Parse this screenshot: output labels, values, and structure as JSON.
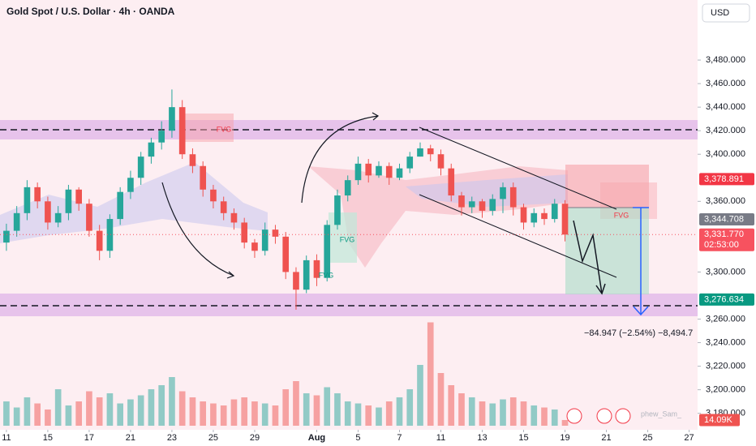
{
  "chart_data": {
    "type": "candlestick",
    "title": "Gold Spot / U.S. Dollar · 4h · OANDA",
    "currency": "USD",
    "watermark": "phew_Sam_",
    "measure_text": "−84.947 (−2.54%) −8,494.7",
    "annotations": [
      "FVG",
      "FVG",
      "FVG",
      "FVG"
    ],
    "up_color": "#26a69a",
    "down_color": "#ef5350",
    "x": [
      0,
      0.5,
      1,
      1.5,
      2,
      2.5,
      3,
      3.5,
      4,
      4.5,
      5,
      5.5,
      6,
      6.5,
      7,
      7.5,
      8,
      8.5,
      9,
      9.5,
      10,
      10.5,
      11,
      11.5,
      12,
      12.5,
      13,
      13.5,
      14,
      14.5,
      15,
      15.5,
      16,
      16.5,
      17,
      17.5,
      18,
      18.5,
      19,
      19.5,
      20,
      20.5,
      21,
      21.5,
      22,
      22.5,
      23,
      23.5,
      24,
      24.5,
      25,
      25.5,
      26,
      26.5,
      27
    ],
    "open": [
      3325,
      3335,
      3350,
      3372,
      3360,
      3342,
      3350,
      3370,
      3358,
      3335,
      3318,
      3345,
      3368,
      3380,
      3398,
      3410,
      3420,
      3440,
      3400,
      3390,
      3370,
      3360,
      3350,
      3342,
      3325,
      3318,
      3336,
      3330,
      3300,
      3285,
      3310,
      3295,
      3340,
      3365,
      3378,
      3392,
      3382,
      3390,
      3380,
      3388,
      3398,
      3405,
      3400,
      3388,
      3365,
      3355,
      3360,
      3352,
      3362,
      3372,
      3355,
      3342,
      3350,
      3345,
      3358
    ],
    "high": [
      3341,
      3356,
      3378,
      3376,
      3364,
      3356,
      3374,
      3372,
      3362,
      3340,
      3349,
      3372,
      3386,
      3402,
      3414,
      3428,
      3455,
      3446,
      3405,
      3394,
      3374,
      3364,
      3354,
      3346,
      3328,
      3342,
      3340,
      3334,
      3304,
      3314,
      3315,
      3344,
      3370,
      3382,
      3398,
      3396,
      3394,
      3393,
      3392,
      3402,
      3410,
      3408,
      3404,
      3392,
      3368,
      3364,
      3362,
      3366,
      3376,
      3376,
      3358,
      3354,
      3354,
      3362,
      3361
    ],
    "low": [
      3318,
      3330,
      3344,
      3354,
      3336,
      3338,
      3344,
      3352,
      3330,
      3310,
      3312,
      3340,
      3362,
      3374,
      3392,
      3404,
      3414,
      3396,
      3384,
      3364,
      3354,
      3344,
      3336,
      3320,
      3312,
      3314,
      3324,
      3294,
      3268,
      3282,
      3288,
      3292,
      3336,
      3360,
      3374,
      3376,
      3380,
      3374,
      3378,
      3384,
      3398,
      3394,
      3382,
      3360,
      3348,
      3350,
      3346,
      3348,
      3350,
      3348,
      3336,
      3338,
      3340,
      3342,
      3326
    ],
    "close": [
      3335,
      3350,
      3372,
      3360,
      3342,
      3350,
      3370,
      3358,
      3335,
      3318,
      3345,
      3368,
      3380,
      3398,
      3410,
      3420,
      3440,
      3400,
      3390,
      3370,
      3360,
      3350,
      3342,
      3325,
      3318,
      3336,
      3330,
      3300,
      3285,
      3310,
      3295,
      3340,
      3365,
      3378,
      3392,
      3382,
      3390,
      3380,
      3388,
      3398,
      3405,
      3400,
      3388,
      3365,
      3355,
      3360,
      3352,
      3362,
      3372,
      3355,
      3342,
      3350,
      3345,
      3358,
      3331.77
    ],
    "volumes": [
      60,
      45,
      70,
      55,
      40,
      90,
      50,
      60,
      85,
      70,
      80,
      55,
      65,
      75,
      90,
      100,
      120,
      85,
      70,
      60,
      55,
      50,
      65,
      70,
      60,
      55,
      50,
      90,
      110,
      80,
      75,
      95,
      80,
      60,
      55,
      50,
      45,
      60,
      70,
      90,
      150,
      255,
      130,
      100,
      80,
      70,
      60,
      55,
      65,
      70,
      60,
      50,
      45,
      40,
      14.09
    ],
    "volume_tag": {
      "value": 14.09,
      "label": "14.09K"
    },
    "volume_lim": [
      0,
      260
    ],
    "xlim": [
      -0.31,
      33.41
    ],
    "ylim": [
      3166,
      3531
    ],
    "xticks": [
      {
        "value": 0,
        "label": "11"
      },
      {
        "value": 2,
        "label": "15"
      },
      {
        "value": 4,
        "label": "17"
      },
      {
        "value": 6,
        "label": "21"
      },
      {
        "value": 8,
        "label": "23"
      },
      {
        "value": 10,
        "label": "25"
      },
      {
        "value": 12,
        "label": "29"
      },
      {
        "value": 15,
        "label": "Aug"
      },
      {
        "value": 17,
        "label": "5"
      },
      {
        "value": 19,
        "label": "7"
      },
      {
        "value": 21,
        "label": "11"
      },
      {
        "value": 23,
        "label": "13"
      },
      {
        "value": 25,
        "label": "15"
      },
      {
        "value": 27,
        "label": "19"
      },
      {
        "value": 29,
        "label": "21"
      },
      {
        "value": 31,
        "label": "25"
      },
      {
        "value": 33,
        "label": "27"
      }
    ],
    "yticks": [
      {
        "value": 3480,
        "label": "3,480.000"
      },
      {
        "value": 3460,
        "label": "3,460.000"
      },
      {
        "value": 3440,
        "label": "3,440.000"
      },
      {
        "value": 3420,
        "label": "3,420.000"
      },
      {
        "value": 3400,
        "label": "3,400.000"
      },
      {
        "value": 3360,
        "label": "3,360.000"
      },
      {
        "value": 3300,
        "label": "3,300.000"
      },
      {
        "value": 3260,
        "label": "3,260.000"
      },
      {
        "value": 3240,
        "label": "3,240.000"
      },
      {
        "value": 3220,
        "label": "3,220.000"
      },
      {
        "value": 3200,
        "label": "3,200.000"
      },
      {
        "value": 3180,
        "label": "3,180.000"
      }
    ],
    "price_tags": [
      {
        "value": 3378.891,
        "label": "3,378.891",
        "color": "#f23645"
      },
      {
        "value": 3344.708,
        "label": "3,344.708",
        "color": "#787b86"
      },
      {
        "value": 3331.77,
        "label": "3,331.770",
        "color": "#f7525f"
      },
      {
        "value": 3276.634,
        "label": "3,276.634",
        "color": "#089981"
      }
    ],
    "countdown": "02:53:00"
  }
}
